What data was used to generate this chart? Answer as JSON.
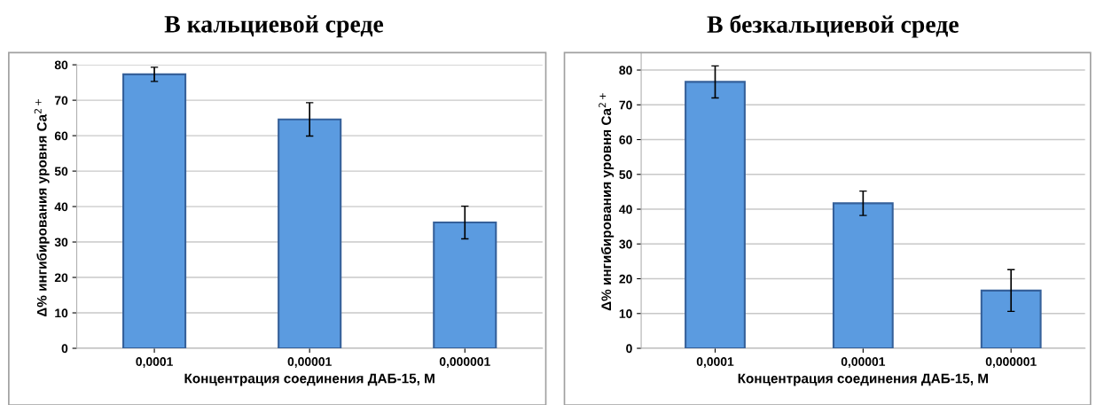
{
  "chart_data": [
    {
      "type": "bar",
      "title": "В кальциевой среде",
      "xlabel": "Концентрация соединения ДАБ-15, М",
      "ylabel": "Δ% ингибирования уровня Ca$^{2+}$",
      "categories": [
        "0,0001",
        "0,00001",
        "0,000001"
      ],
      "values": [
        77.3,
        64.6,
        35.5
      ],
      "errors": [
        2,
        4.7,
        4.6
      ],
      "color": "#5b9be0",
      "ylim": [
        0,
        80
      ],
      "yticks": [
        0,
        10,
        20,
        30,
        40,
        50,
        60,
        70,
        80
      ],
      "grid": "y"
    },
    {
      "type": "bar",
      "title": "В безкальциевой среде",
      "xlabel": "Концентрация соединения ДАБ-15, М",
      "ylabel": "Δ% ингибирования уровня Ca$^{2+}$",
      "categories": [
        "0,0001",
        "0,00001",
        "0,000001"
      ],
      "values": [
        76.6,
        41.7,
        16.6
      ],
      "errors": [
        4.6,
        3.5,
        6
      ],
      "color": "#5b9be0",
      "ylim": [
        0,
        85
      ],
      "yticks": [
        0,
        10,
        20,
        30,
        40,
        50,
        60,
        70,
        80
      ],
      "grid": "y"
    }
  ]
}
